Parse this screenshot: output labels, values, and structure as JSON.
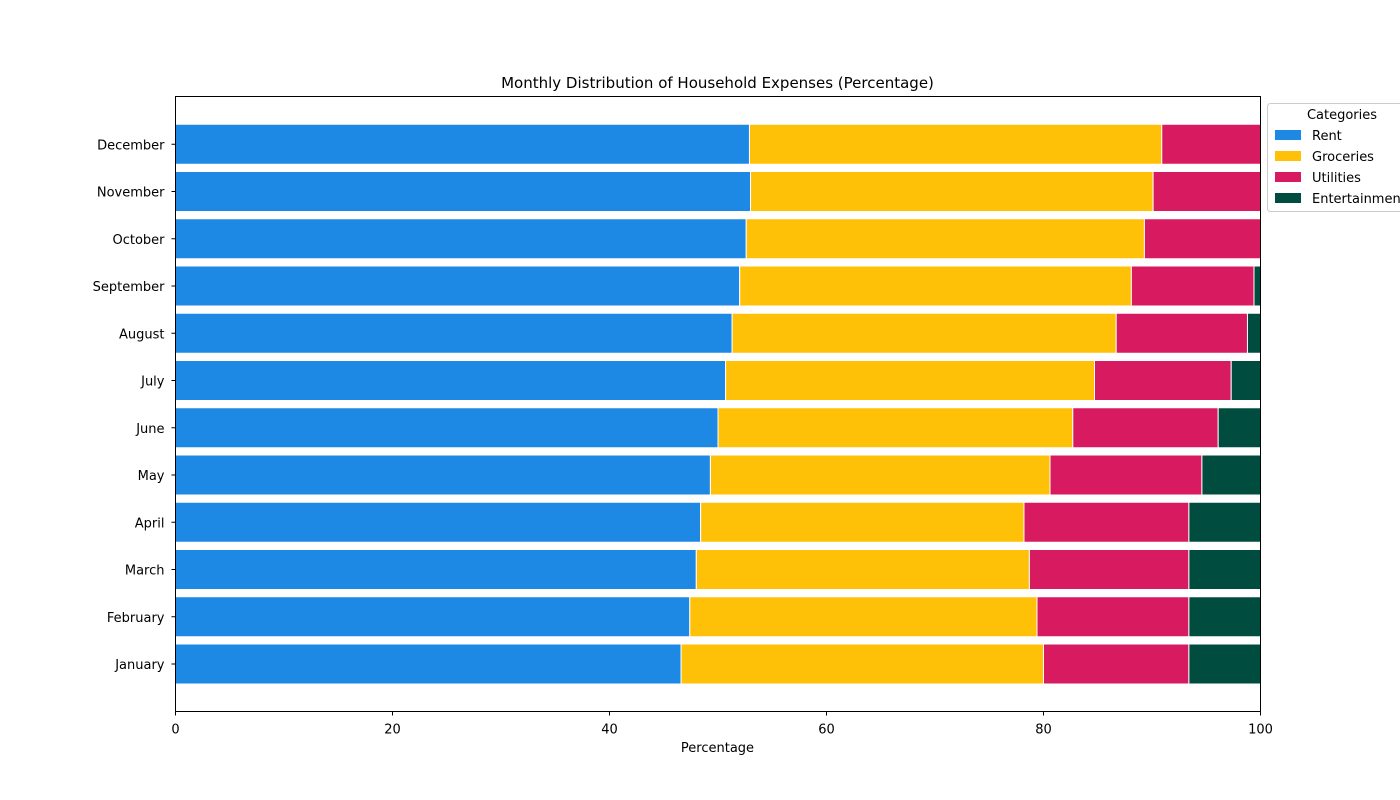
{
  "chart_data": {
    "type": "bar",
    "orientation": "horizontal",
    "stacked": true,
    "title": "Monthly Distribution of Household Expenses (Percentage)",
    "xlabel": "Percentage",
    "ylabel": "",
    "xlim": [
      0,
      100
    ],
    "xticks": [
      0,
      20,
      40,
      60,
      80,
      100
    ],
    "grid": false,
    "legend": {
      "title": "Categories",
      "placement": "top-right, outside plot"
    },
    "categories": [
      "January",
      "February",
      "March",
      "April",
      "May",
      "June",
      "July",
      "August",
      "September",
      "October",
      "November",
      "December"
    ],
    "series": [
      {
        "name": "Rent",
        "color": "#1e88e5",
        "values": [
          46.6,
          47.4,
          48.0,
          48.4,
          49.3,
          50.0,
          50.7,
          51.3,
          52.0,
          52.6,
          53.0,
          52.9
        ]
      },
      {
        "name": "Groceries",
        "color": "#ffc107",
        "values": [
          33.4,
          32.0,
          30.7,
          29.8,
          31.3,
          32.7,
          34.0,
          35.4,
          36.1,
          36.7,
          37.1,
          38.0
        ]
      },
      {
        "name": "Utilities",
        "color": "#d81b60",
        "values": [
          13.4,
          14.0,
          14.7,
          15.2,
          14.0,
          13.4,
          12.6,
          12.1,
          11.3,
          10.7,
          9.9,
          9.1
        ]
      },
      {
        "name": "Entertainment",
        "color": "#004d40",
        "values": [
          6.6,
          6.6,
          6.6,
          6.6,
          5.4,
          3.9,
          2.7,
          1.2,
          0.6,
          0.0,
          0.0,
          0.0
        ]
      }
    ]
  }
}
